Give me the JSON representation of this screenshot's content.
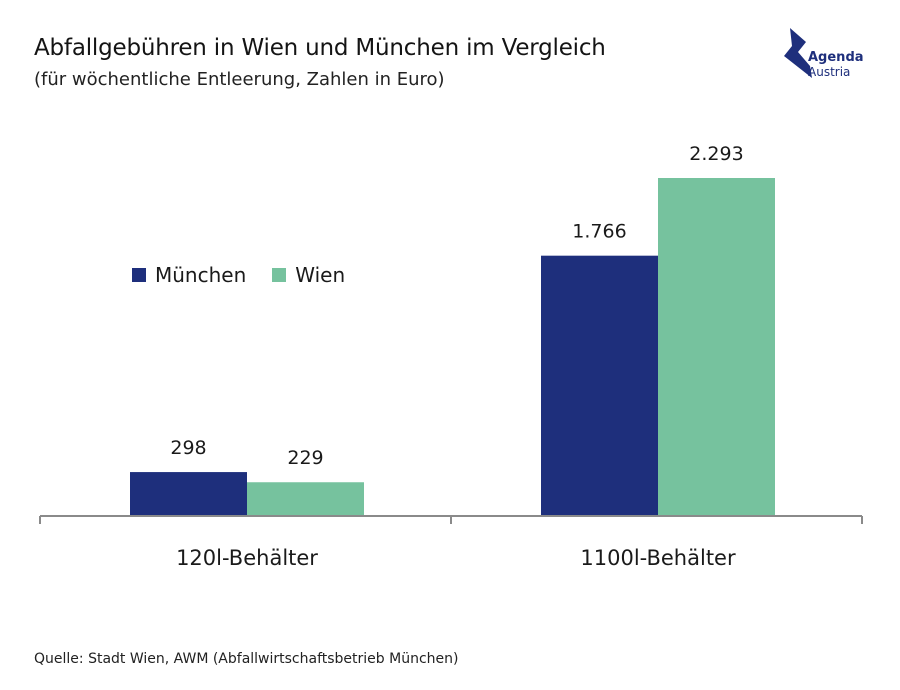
{
  "header": {
    "title": "Abfallgebühren in Wien und München im Vergleich",
    "subtitle": "(für wöchentliche Entleerung, Zahlen in Euro)"
  },
  "logo": {
    "line1": "Agenda",
    "line2": "Austria",
    "color": "#1e2f7c"
  },
  "source": "Quelle: Stadt Wien, AWM (Abfallwirtschaftsbetrieb München)",
  "chart_data": {
    "type": "bar",
    "title": "Abfallgebühren in Wien und München im Vergleich",
    "subtitle": "(für wöchentliche Entleerung, Zahlen in Euro)",
    "categories": [
      "120l-Behälter",
      "1100l-Behälter"
    ],
    "series": [
      {
        "name": "München",
        "color": "#1e2f7c",
        "values": [
          298,
          1766
        ],
        "labels": [
          "298",
          "1.766"
        ]
      },
      {
        "name": "Wien",
        "color": "#76c29e",
        "values": [
          229,
          2293
        ],
        "labels": [
          "229",
          "2.293"
        ]
      }
    ],
    "ylim": [
      0,
      2293
    ],
    "grid": false,
    "legend_position": "left-center"
  }
}
